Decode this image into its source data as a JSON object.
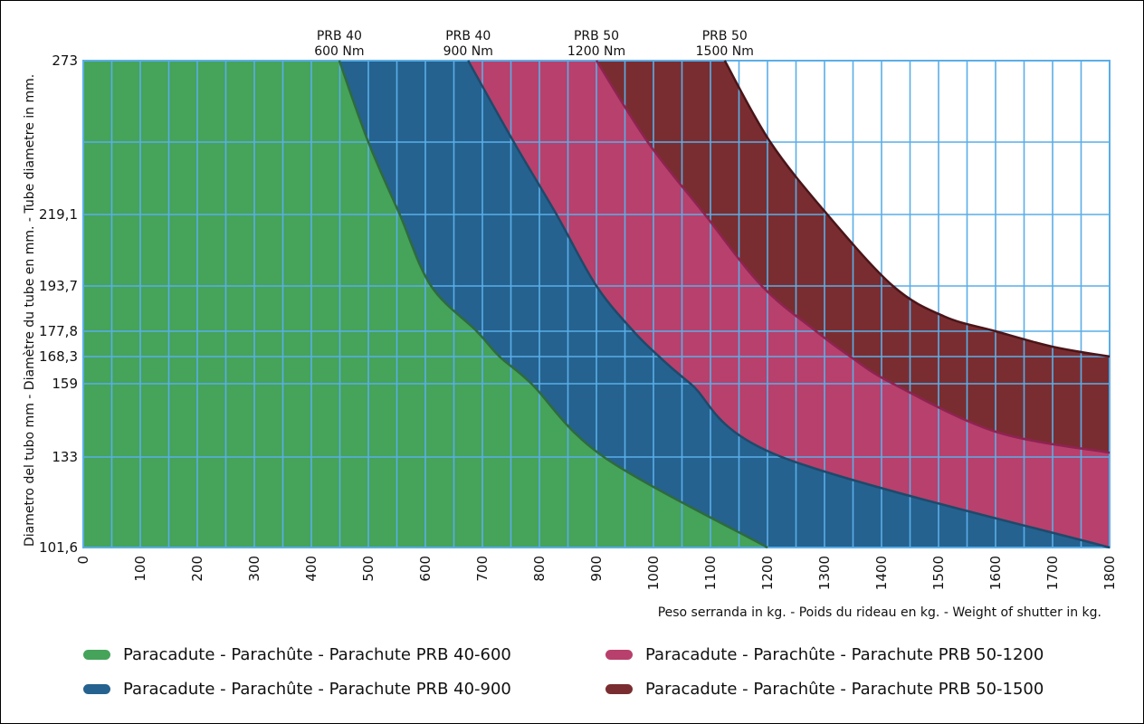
{
  "chart_data": {
    "type": "area",
    "title": "",
    "xlabel": "Peso serranda in kg. - Poids du rideau en kg. - Weight of shutter in kg.",
    "ylabel": "Diametro del tubo mm - Diamètre du tube en mm. - Tube diametre in mm.",
    "xlim": [
      0,
      1800
    ],
    "x_ticks": [
      "0",
      "100",
      "200",
      "300",
      "400",
      "500",
      "600",
      "700",
      "800",
      "900",
      "1000",
      "1100",
      "1200",
      "1300",
      "1400",
      "1500",
      "1600",
      "1700",
      "1800"
    ],
    "x_tick_values": [
      0,
      100,
      200,
      300,
      400,
      500,
      600,
      700,
      800,
      900,
      1000,
      1100,
      1200,
      1300,
      1400,
      1500,
      1600,
      1700,
      1800
    ],
    "y_ticks": [
      "273",
      "219,1",
      "193,7",
      "177,8",
      "168,3",
      "159",
      "133",
      "101,6"
    ],
    "y_tick_values": [
      273,
      219.1,
      193.7,
      177.8,
      168.3,
      159,
      133,
      101.6
    ],
    "grid": true,
    "legend_position": "bottom",
    "top_labels": [
      {
        "line1": "PRB 40",
        "line2": "600 Nm",
        "x": 449
      },
      {
        "line1": "PRB 40",
        "line2": "900 Nm",
        "x": 675
      },
      {
        "line1": "PRB 50",
        "line2": "1200 Nm",
        "x": 900
      },
      {
        "line1": "PRB 50",
        "line2": "1500 Nm",
        "x": 1125
      }
    ],
    "series": [
      {
        "name": "Paracadute - Parachûte - Parachute  PRB 40-600",
        "color": "#45a35a",
        "line_color": "#2e6b3c",
        "points": [
          [
            449,
            273
          ],
          [
            500,
            245
          ],
          [
            555,
            219.1
          ],
          [
            610,
            193.7
          ],
          [
            690,
            177.8
          ],
          [
            730,
            168.3
          ],
          [
            786,
            159
          ],
          [
            913,
            133
          ],
          [
            1200,
            101.6
          ]
        ]
      },
      {
        "name": "Paracadute - Parachûte - Parachute PRB 40-900",
        "color": "#25628f",
        "line_color": "#1d4a6b",
        "points": [
          [
            675,
            273
          ],
          [
            755,
            245
          ],
          [
            830,
            219.1
          ],
          [
            900,
            193.7
          ],
          [
            965,
            177.8
          ],
          [
            1010,
            168.3
          ],
          [
            1065,
            159
          ],
          [
            1225,
            133
          ],
          [
            1800,
            101.6
          ]
        ]
      },
      {
        "name": "Paracadute - Parachûte - Parachute  PRB 50-1200",
        "color": "#b8406c",
        "line_color": "#8e2352",
        "points": [
          [
            900,
            273
          ],
          [
            990,
            245
          ],
          [
            1090,
            219.1
          ],
          [
            1190,
            193.7
          ],
          [
            1285,
            177.8
          ],
          [
            1345,
            168.3
          ],
          [
            1420,
            159
          ],
          [
            1600,
            142
          ],
          [
            1800,
            134.5
          ]
        ]
      },
      {
        "name": "Paracadute - Parachûte - Parachute  PRB 50-1500",
        "color": "#7a2d30",
        "line_color": "#4a1519",
        "points": [
          [
            1125,
            273
          ],
          [
            1205,
            245
          ],
          [
            1305,
            219.1
          ],
          [
            1420,
            193.7
          ],
          [
            1510,
            183
          ],
          [
            1600,
            177.8
          ],
          [
            1700,
            172
          ],
          [
            1800,
            168.3
          ]
        ]
      }
    ]
  }
}
